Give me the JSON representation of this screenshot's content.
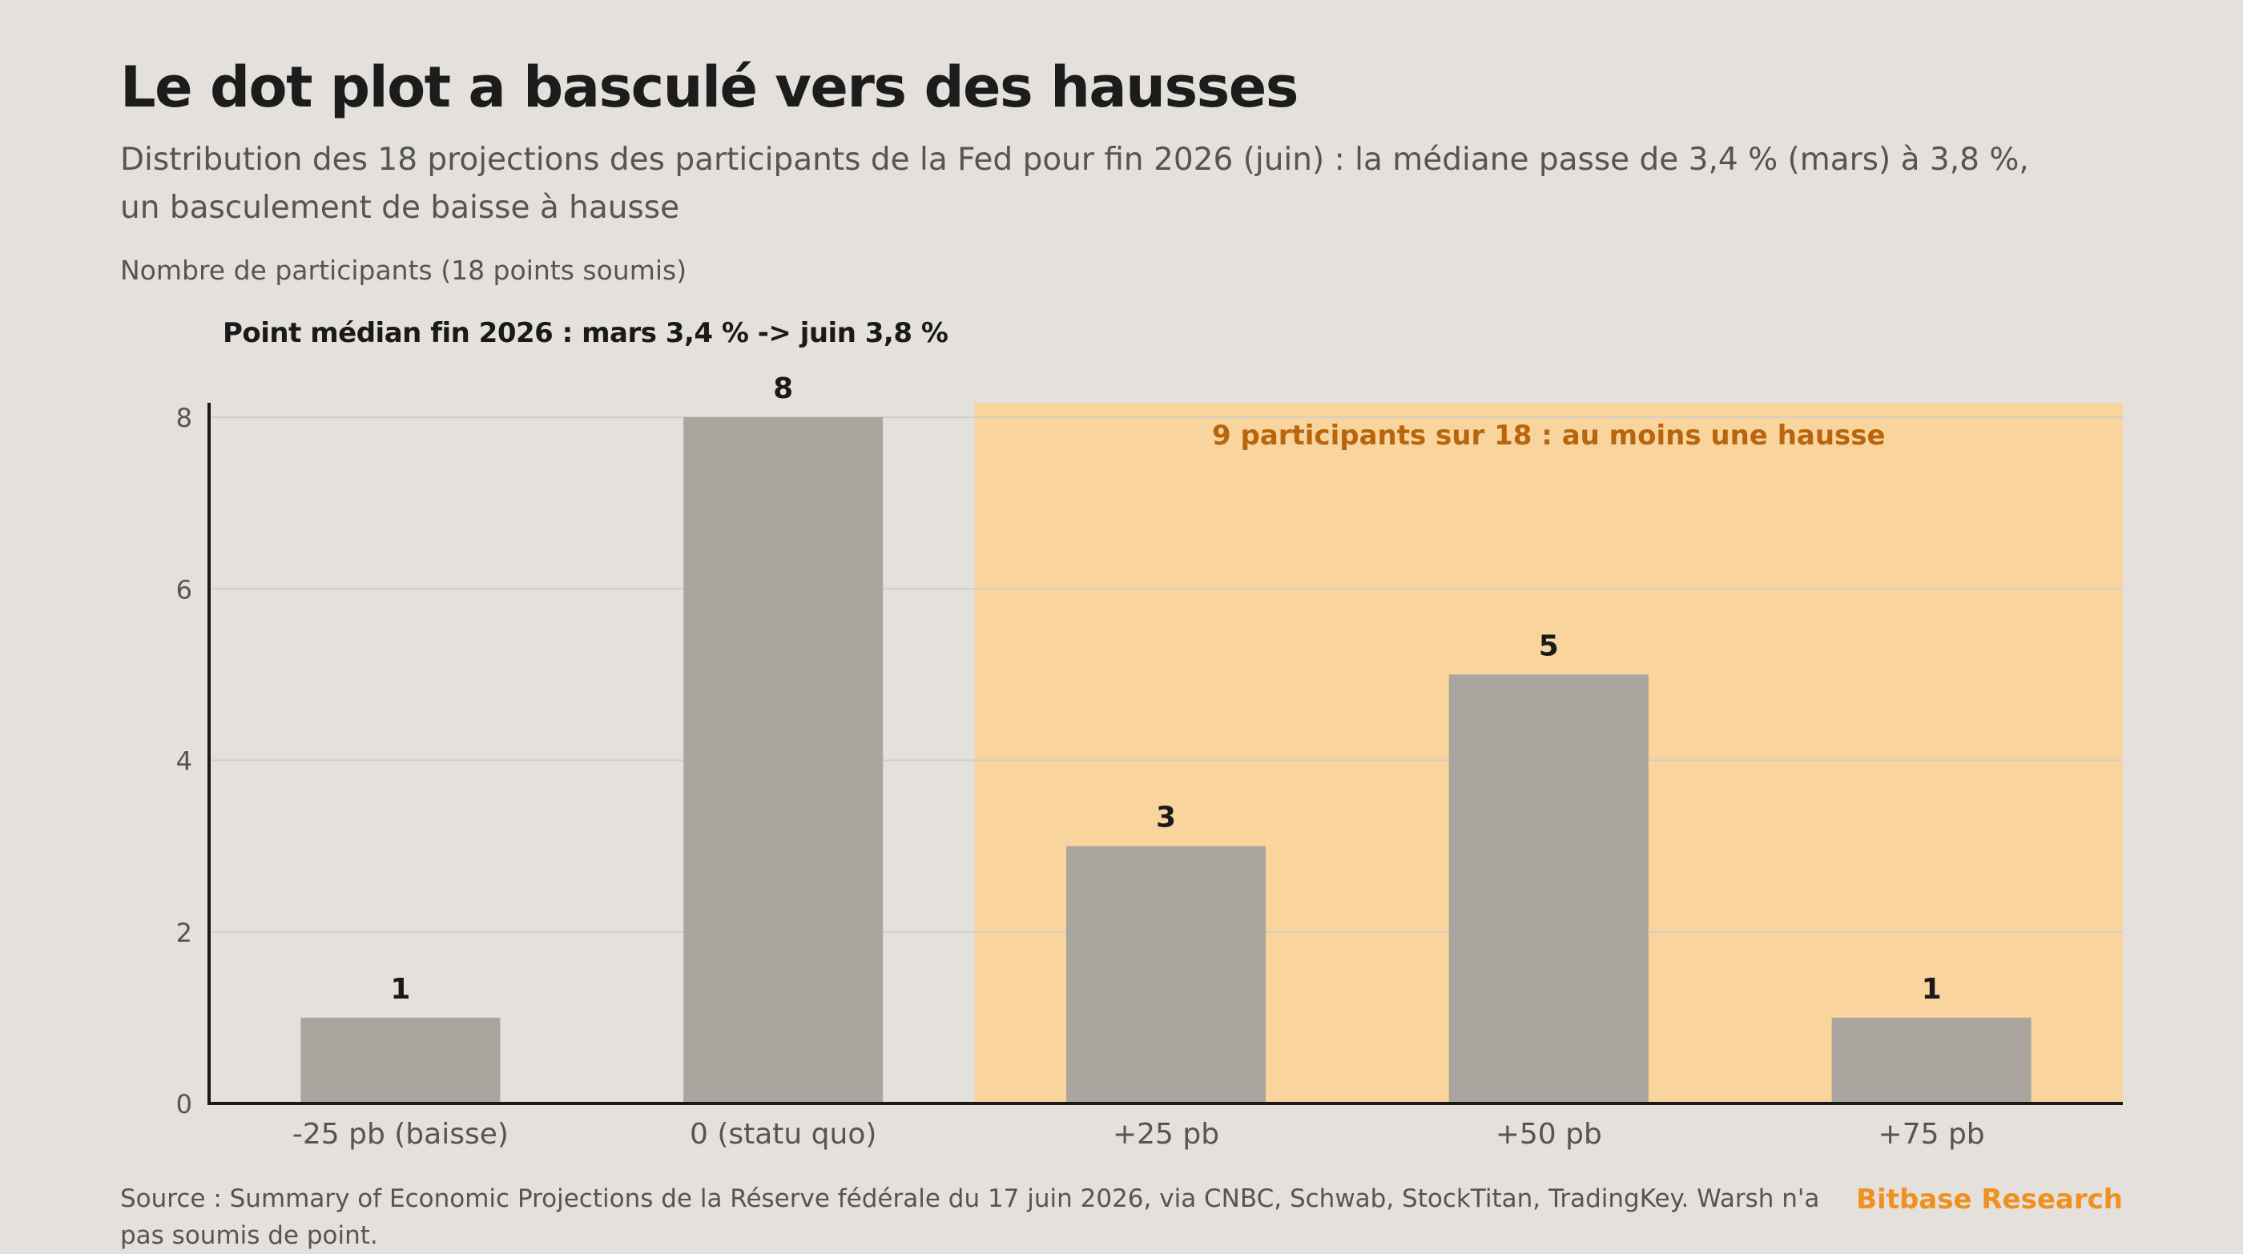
{
  "header": {
    "title": "Le dot plot a basculé vers des hausses",
    "subtitle": "Distribution des 18 projections des participants de la Fed pour fin 2026 (juin) : la médiane passe de 3,4 % (mars) à 3,8 %, un basculement de baisse à hausse"
  },
  "chart_data": {
    "type": "bar",
    "ylabel": "Nombre de participants (18 points soumis)",
    "xlabel": "",
    "categories": [
      "-25 pb (baisse)",
      "0 (statu quo)",
      "+25 pb",
      "+50 pb",
      "+75 pb"
    ],
    "values": [
      1,
      8,
      3,
      5,
      1
    ],
    "ylim": [
      0,
      8
    ],
    "yticks": [
      0,
      2,
      4,
      6,
      8
    ],
    "grid": true,
    "annotations": {
      "median_note": "Point médian fin 2026 : mars 3,4 % -> juin 3,8 %",
      "highlight_label": "9 participants sur 18 : au moins une hausse",
      "highlight_from_category": "+25 pb"
    },
    "colors": {
      "bar": "#aaa69f",
      "highlight_band": "#f9d49d",
      "highlight_text": "#b8650d",
      "grid": "#d2cdc7",
      "axis": "#1a1a1a"
    }
  },
  "footer": {
    "source": "Source : Summary of Economic Projections de la Réserve fédérale du 17 juin 2026, via CNBC, Schwab, StockTitan, TradingKey. Warsh n'a pas soumis de point.",
    "brand": "Bitbase Research"
  }
}
